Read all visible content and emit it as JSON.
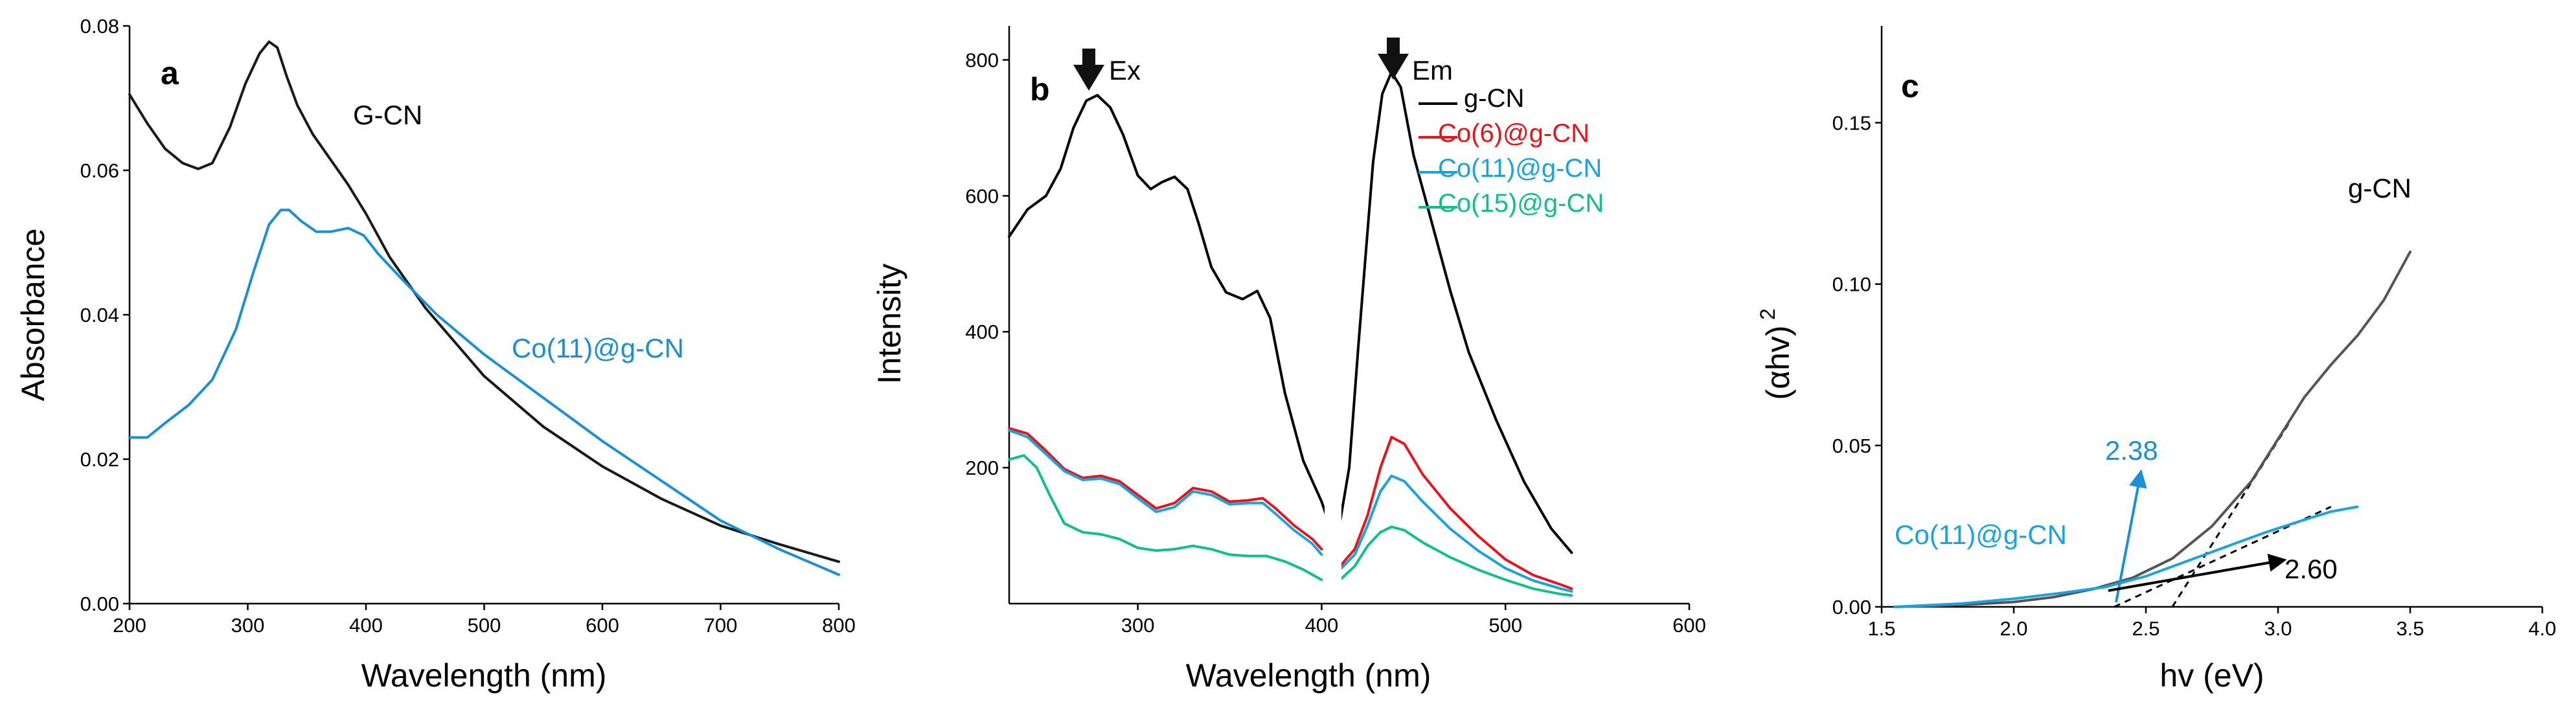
{
  "chart_data": [
    {
      "panel_label": "a",
      "type": "line",
      "xlabel": "Wavelength  (nm)",
      "ylabel": "Absorbance",
      "xlim": [
        200,
        800
      ],
      "ylim": [
        0,
        0.08
      ],
      "xticks": [
        200,
        300,
        400,
        500,
        600,
        700,
        800
      ],
      "xtick_labels": [
        "200",
        "300",
        "400",
        "500",
        "600",
        "700",
        "800"
      ],
      "yticks": [
        0,
        0.02,
        0.04,
        0.06,
        0.08
      ],
      "ytick_labels": [
        "0.00",
        "0.02",
        "0.04",
        "0.06",
        "0.08"
      ],
      "series": [
        {
          "name": "G-CN",
          "color": "#1a1a1a",
          "label": "G-CN",
          "x": [
            200,
            215,
            230,
            245,
            258,
            270,
            285,
            298,
            310,
            318,
            325,
            333,
            342,
            355,
            370,
            385,
            400,
            420,
            450,
            500,
            550,
            600,
            650,
            700,
            750,
            800
          ],
          "y": [
            0.0705,
            0.0665,
            0.063,
            0.061,
            0.0602,
            0.061,
            0.066,
            0.072,
            0.0762,
            0.0778,
            0.077,
            0.073,
            0.069,
            0.065,
            0.0615,
            0.058,
            0.054,
            0.048,
            0.041,
            0.0315,
            0.0245,
            0.019,
            0.0145,
            0.0108,
            0.0082,
            0.0058
          ]
        },
        {
          "name": "Co(11)@g-CN",
          "color": "#1a8fd6",
          "label": "Co(11)@g-CN",
          "x": [
            200,
            215,
            230,
            250,
            270,
            290,
            305,
            318,
            328,
            335,
            345,
            358,
            370,
            385,
            398,
            410,
            430,
            460,
            500,
            550,
            600,
            650,
            700,
            750,
            800
          ],
          "y": [
            0.023,
            0.023,
            0.025,
            0.0275,
            0.031,
            0.038,
            0.046,
            0.0525,
            0.0545,
            0.0545,
            0.053,
            0.0515,
            0.0515,
            0.052,
            0.051,
            0.0485,
            0.045,
            0.04,
            0.0345,
            0.0285,
            0.0225,
            0.017,
            0.0115,
            0.0075,
            0.004
          ]
        }
      ]
    },
    {
      "panel_label": "b",
      "type": "line",
      "xlabel": "Wavelength  (nm)",
      "ylabel": "Intensity",
      "xlim": [
        230,
        600
      ],
      "ylim": [
        0,
        850
      ],
      "xticks": [
        300,
        400,
        500,
        600
      ],
      "xtick_labels": [
        "300",
        "400",
        "500",
        "600"
      ],
      "yticks": [
        200,
        400,
        600,
        800
      ],
      "ytick_labels": [
        "200",
        "400",
        "600",
        "800"
      ],
      "annotations": [
        {
          "text": "Ex",
          "x": 276
        },
        {
          "text": "Em",
          "x": 438
        }
      ],
      "legend_position": "top-right",
      "series": [
        {
          "name": "g-CN",
          "color": "#000000",
          "label": "g-CN",
          "segments": [
            {
              "x": [
                230,
                240,
                250,
                258,
                265,
                272,
                278,
                285,
                292,
                300,
                307,
                313,
                320,
                327,
                333,
                340,
                348,
                357,
                365,
                372,
                380,
                390,
                400,
                405
              ],
              "y": [
                540,
                580,
                600,
                640,
                700,
                740,
                748,
                730,
                690,
                630,
                610,
                620,
                628,
                610,
                560,
                495,
                458,
                448,
                460,
                420,
                310,
                210,
                150,
                110
              ]
            },
            {
              "x": [
                410,
                415,
                420,
                428,
                433,
                438,
                443,
                450,
                460,
                470,
                480,
                495,
                510,
                525,
                536
              ],
              "y": [
                120,
                200,
                380,
                650,
                750,
                782,
                760,
                660,
                560,
                460,
                370,
                270,
                180,
                110,
                75
              ]
            }
          ]
        },
        {
          "name": "Co(6)@g-CN",
          "color": "#e8141b",
          "label": "Co(6)@g-CN",
          "segments": [
            {
              "x": [
                230,
                240,
                250,
                260,
                270,
                280,
                290,
                300,
                310,
                320,
                330,
                340,
                350,
                360,
                368,
                375,
                385,
                395,
                400
              ],
              "y": [
                258,
                250,
                225,
                198,
                185,
                188,
                180,
                160,
                140,
                148,
                170,
                165,
                150,
                152,
                155,
                140,
                115,
                95,
                80
              ]
            },
            {
              "x": [
                410,
                418,
                425,
                432,
                438,
                445,
                455,
                470,
                485,
                500,
                515,
                530,
                536
              ],
              "y": [
                55,
                80,
                130,
                200,
                245,
                235,
                190,
                140,
                100,
                65,
                42,
                28,
                22
              ]
            }
          ]
        },
        {
          "name": "Co(11)@g-CN",
          "color": "#1aa3dc",
          "label": "Co(11)@g-CN",
          "segments": [
            {
              "x": [
                230,
                240,
                250,
                260,
                270,
                280,
                290,
                300,
                310,
                320,
                330,
                340,
                350,
                360,
                368,
                375,
                385,
                395,
                400
              ],
              "y": [
                255,
                245,
                220,
                195,
                182,
                184,
                176,
                155,
                135,
                142,
                165,
                160,
                146,
                148,
                148,
                132,
                108,
                88,
                72
              ]
            },
            {
              "x": [
                410,
                418,
                425,
                432,
                438,
                445,
                455,
                470,
                485,
                500,
                515,
                530,
                536
              ],
              "y": [
                50,
                72,
                115,
                165,
                188,
                180,
                150,
                110,
                78,
                52,
                34,
                22,
                18
              ]
            }
          ]
        },
        {
          "name": "Co(15)@g-CN",
          "color": "#10c08a",
          "label": "Co(15)@g-CN",
          "segments": [
            {
              "x": [
                230,
                238,
                245,
                252,
                260,
                270,
                280,
                290,
                300,
                310,
                320,
                330,
                340,
                350,
                360,
                370,
                380,
                390,
                400
              ],
              "y": [
                212,
                218,
                200,
                160,
                118,
                105,
                102,
                95,
                82,
                78,
                80,
                85,
                80,
                72,
                70,
                70,
                62,
                50,
                35
              ]
            },
            {
              "x": [
                410,
                418,
                425,
                432,
                438,
                445,
                455,
                470,
                485,
                500,
                515,
                530,
                536
              ],
              "y": [
                35,
                55,
                85,
                105,
                113,
                108,
                90,
                68,
                50,
                35,
                22,
                14,
                12
              ]
            }
          ]
        }
      ]
    },
    {
      "panel_label": "c",
      "type": "line",
      "xlabel": "hv (eV)",
      "ylabel": "(αhv)²",
      "ylabel_base": "(αhv)",
      "ylabel_exp": "2",
      "xlim": [
        1.5,
        4.0
      ],
      "ylim": [
        0,
        0.18
      ],
      "xticks": [
        1.5,
        2.0,
        2.5,
        3.0,
        3.5,
        4.0
      ],
      "xtick_labels": [
        "1.5",
        "2.0",
        "2.5",
        "3.0",
        "3.5",
        "4.0"
      ],
      "yticks": [
        0,
        0.05,
        0.1,
        0.15
      ],
      "ytick_labels": [
        "0.00",
        "0.05",
        "0.10",
        "0.15"
      ],
      "series": [
        {
          "name": "g-CN",
          "color": "#555555",
          "label": "g-CN",
          "x": [
            1.55,
            1.7,
            1.85,
            2.0,
            2.15,
            2.3,
            2.45,
            2.6,
            2.75,
            2.9,
            3.0,
            3.1,
            3.2,
            3.3,
            3.4,
            3.5
          ],
          "y": [
            0.0,
            0.0003,
            0.0008,
            0.0015,
            0.003,
            0.0055,
            0.009,
            0.015,
            0.025,
            0.039,
            0.052,
            0.065,
            0.075,
            0.084,
            0.095,
            0.11
          ]
        },
        {
          "name": "Co(11)@g-CN",
          "color": "#1aa3dc",
          "label": "Co(11)@g-CN",
          "x": [
            1.55,
            1.8,
            2.0,
            2.2,
            2.35,
            2.5,
            2.65,
            2.8,
            2.95,
            3.1,
            3.2,
            3.3
          ],
          "y": [
            0.0,
            0.001,
            0.0025,
            0.0045,
            0.0062,
            0.0095,
            0.014,
            0.0185,
            0.023,
            0.027,
            0.0295,
            0.031
          ]
        }
      ],
      "fit_lines": [
        {
          "x": [
            2.6,
            3.05
          ],
          "y": [
            0.0,
            0.058
          ]
        },
        {
          "x": [
            2.38,
            3.2
          ],
          "y": [
            0.0,
            0.031
          ]
        }
      ],
      "annotations": [
        {
          "text": "2.38",
          "color": "#1a8fd6",
          "target_x": 2.38
        },
        {
          "text": "2.60",
          "color": "#000000",
          "target_x": 2.6
        }
      ]
    }
  ]
}
